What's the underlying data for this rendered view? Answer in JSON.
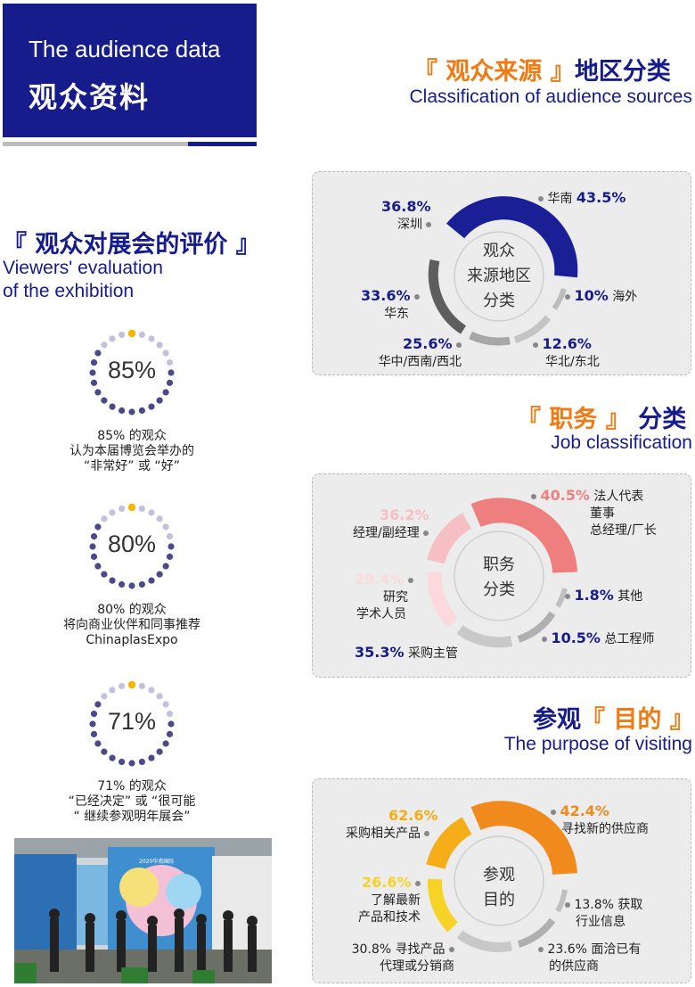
{
  "header": {
    "en": "The audience data",
    "zh": "观众资料"
  },
  "source_section": {
    "title_bracket": "『 观众来源 』",
    "title_rest": "地区分类",
    "subtitle": "Classification of audience sources",
    "center_label": [
      "观众",
      "来源地区",
      "分类"
    ],
    "items": [
      {
        "pct": "43.5%",
        "name": "华南",
        "color": "#1a1f96"
      },
      {
        "pct": "10%",
        "name": "海外",
        "color": "#b0b0b0"
      },
      {
        "pct": "12.6%",
        "name": "华北/东北",
        "color": "#c4c4c4"
      },
      {
        "pct": "25.6%",
        "name": "华中/西南/西北",
        "color": "#a7a7a7"
      },
      {
        "pct": "33.6%",
        "name": "华东",
        "color": "#5e5e5e"
      },
      {
        "pct": "36.8%",
        "name": "深圳",
        "color": "#8a8a8a"
      }
    ]
  },
  "evaluation": {
    "title": "『 观众对展会的评价 』",
    "subtitle_line1": "Viewers' evaluation",
    "subtitle_line2": "of the exhibition",
    "items": [
      {
        "value": "85%",
        "caption": [
          "85% 的观众",
          "认为本届博览会举办的",
          "“非常好” 或 “好”"
        ]
      },
      {
        "value": "80%",
        "caption": [
          "80% 的观众",
          "将向商业伙伴和同事推荐",
          "ChinaplasExpo"
        ]
      },
      {
        "value": "71%",
        "caption": [
          "71% 的观众",
          "“已经决定” 或 “很可能",
          "“ 继续参观明年展会”"
        ]
      }
    ]
  },
  "job_section": {
    "title_bracket": "『 职务 』",
    "title_rest": "分类",
    "subtitle": "Job classification",
    "center_label": [
      "职务",
      "分类"
    ],
    "items": [
      {
        "pct": "40.5%",
        "name": "法人代表",
        "name2": "董事",
        "name3": "总经理/厂长",
        "color": "#ef7f7f"
      },
      {
        "pct": "1.8%",
        "name": "其他",
        "color": "#c0c0c0"
      },
      {
        "pct": "10.5%",
        "name": "总工程师",
        "color": "#b0b0b0"
      },
      {
        "pct": "35.3%",
        "name": "采购主管",
        "color": "#c9c9c9"
      },
      {
        "pct": "29.4%",
        "name": "研究",
        "name2": "学术人员",
        "color": "#fbd9dc"
      },
      {
        "pct": "36.2%",
        "name": "经理/副经理",
        "color": "#f6bfc3"
      }
    ]
  },
  "purpose_section": {
    "title_pre": "参观",
    "title_bracket": "『 目的 』",
    "subtitle": "The purpose of visiting",
    "center_label": [
      "参观",
      "目的"
    ],
    "items": [
      {
        "pct": "42.4%",
        "name": "寻找新的供应商",
        "color": "#f08a1c"
      },
      {
        "pct": "13.8%",
        "name": "获取",
        "name2": "行业信息",
        "color": "#c0c0c0"
      },
      {
        "pct": "23.6%",
        "name": "面洽已有",
        "name2": "的供应商",
        "color": "#b0b0b0"
      },
      {
        "pct": "30.8%",
        "name": "寻找产品",
        "name2": "代理或分销商",
        "color": "#c8c8c8"
      },
      {
        "pct": "26.6%",
        "name": "了解最新",
        "name2": "产品和技术",
        "color": "#f7d227"
      },
      {
        "pct": "62.6%",
        "name": "采购相关产品",
        "color": "#f5ae18"
      }
    ]
  },
  "photo": {
    "description": "Exhibition entrance crowd photo",
    "banner": "2020华南国际"
  }
}
